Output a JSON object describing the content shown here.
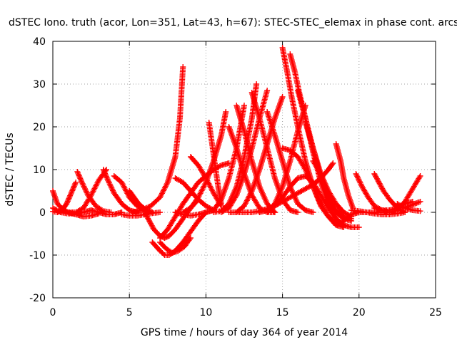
{
  "chart_data": {
    "type": "scatter",
    "title": "dSTEC Iono. truth (acor, Lon=351, Lat=43, h=67): STEC-STEC_elemax in phase cont. arcs",
    "xlabel": "GPS time / hours of day 364 of year 2014",
    "ylabel": "dSTEC  / TECUs",
    "xlim": [
      0,
      25
    ],
    "ylim": [
      -20,
      40
    ],
    "xticks": [
      0,
      5,
      10,
      15,
      20,
      25
    ],
    "yticks": [
      -20,
      -10,
      0,
      10,
      20,
      30,
      40
    ],
    "grid": true,
    "marker": "+",
    "series_color": "#ff0000",
    "series": [
      {
        "x": [
          0.0,
          0.3,
          0.7,
          1.0,
          1.3
        ],
        "y": [
          5,
          2,
          0.5,
          0,
          0
        ]
      },
      {
        "x": [
          0.0,
          0.3,
          0.6,
          0.9,
          1.2,
          1.5
        ],
        "y": [
          0.2,
          0,
          0.5,
          2,
          4.5,
          7
        ]
      },
      {
        "x": [
          0.0,
          0.5,
          1.0,
          1.5,
          2.0,
          2.5
        ],
        "y": [
          1,
          0,
          -0.3,
          -0.3,
          0,
          0.5
        ]
      },
      {
        "x": [
          0.5,
          1.0,
          1.5,
          2.0,
          2.5,
          3.0,
          3.5
        ],
        "y": [
          0,
          0,
          0,
          1,
          4,
          7.5,
          10
        ]
      },
      {
        "x": [
          1.6,
          1.9,
          2.3,
          2.8,
          3.3,
          3.8
        ],
        "y": [
          9.5,
          7,
          4,
          1.5,
          0.3,
          0
        ]
      },
      {
        "x": [
          1.0,
          1.5,
          2.0,
          2.5,
          3.0
        ],
        "y": [
          0,
          -0.5,
          -1,
          -0.8,
          -0.3
        ]
      },
      {
        "x": [
          3.3,
          3.6,
          4.0,
          4.5,
          5.0,
          5.5
        ],
        "y": [
          10,
          7.5,
          4.5,
          2,
          0.5,
          0
        ]
      },
      {
        "x": [
          2.5,
          3.0,
          3.5,
          4.0,
          4.5
        ],
        "y": [
          0.5,
          0,
          -0.5,
          -0.5,
          0
        ]
      },
      {
        "x": [
          4.0,
          4.5,
          5.0,
          5.5,
          6.0,
          6.5
        ],
        "y": [
          8.5,
          7,
          3.5,
          1.5,
          0.5,
          0
        ]
      },
      {
        "x": [
          5.0,
          5.3,
          5.6,
          6.0,
          6.5
        ],
        "y": [
          5,
          3.5,
          2,
          0.8,
          0
        ]
      },
      {
        "x": [
          4.5,
          5.0,
          5.5,
          6.0,
          6.5,
          7.0
        ],
        "y": [
          -0.5,
          -0.8,
          -0.8,
          -0.5,
          -0.2,
          0
        ]
      },
      {
        "x": [
          5.2,
          5.8,
          6.4,
          7.0,
          7.5,
          8.0,
          8.3,
          8.5
        ],
        "y": [
          0,
          0.5,
          1.5,
          3.5,
          7,
          13,
          22,
          34
        ]
      },
      {
        "x": [
          6.0,
          6.3,
          6.6,
          7.0,
          7.3,
          7.6,
          8.0,
          8.5,
          9.0,
          9.5
        ],
        "y": [
          0,
          -2,
          -4,
          -5.5,
          -6,
          -5.5,
          -4,
          -1.5,
          1,
          3
        ]
      },
      {
        "x": [
          6.5,
          7.0,
          7.3,
          7.6,
          8.0,
          8.5,
          9.0,
          9.5,
          10.0
        ],
        "y": [
          -7,
          -9,
          -10,
          -10,
          -9,
          -7,
          -4.5,
          -2,
          0
        ]
      },
      {
        "x": [
          7.0,
          7.4,
          7.8,
          8.2,
          8.6,
          9.0
        ],
        "y": [
          -7,
          -8.5,
          -9.5,
          -9,
          -8,
          -6
        ]
      },
      {
        "x": [
          7.0,
          7.5,
          8.0,
          8.5,
          9.0,
          9.5,
          10.0,
          10.5,
          11.0,
          11.5
        ],
        "y": [
          -6,
          -4,
          -1,
          2,
          4.5,
          7,
          8.5,
          10,
          11,
          11.5
        ]
      },
      {
        "x": [
          8.0,
          8.5,
          9.0,
          9.5,
          10.0,
          10.5
        ],
        "y": [
          8,
          7,
          5,
          3,
          1.5,
          0.5
        ]
      },
      {
        "x": [
          9.0,
          9.5,
          10.0,
          10.5,
          11.0
        ],
        "y": [
          13,
          11,
          8,
          4.5,
          1.5
        ]
      },
      {
        "x": [
          8.0,
          8.5,
          9.0,
          9.5,
          10.0,
          10.5
        ],
        "y": [
          0,
          -0.5,
          -0.8,
          -0.5,
          0,
          0.5
        ]
      },
      {
        "x": [
          8.5,
          9.0,
          9.5,
          10.0,
          10.5,
          11.0,
          11.3
        ],
        "y": [
          0,
          1,
          3.5,
          7,
          12,
          18,
          23.5
        ]
      },
      {
        "x": [
          10.2,
          10.4,
          10.6,
          10.8,
          11.0
        ],
        "y": [
          21,
          16,
          11,
          6,
          2
        ]
      },
      {
        "x": [
          10.0,
          10.5,
          11.0,
          11.5,
          12.0,
          12.5
        ],
        "y": [
          0,
          0.5,
          3,
          8,
          15,
          25
        ]
      },
      {
        "x": [
          10.5,
          11.0,
          11.5,
          12.0,
          12.5,
          13.0,
          13.3
        ],
        "y": [
          0,
          0.3,
          2,
          6,
          13,
          22,
          30
        ]
      },
      {
        "x": [
          11.0,
          11.5,
          12.0,
          12.5,
          13.0,
          13.5,
          14.0
        ],
        "y": [
          0,
          1,
          4,
          9,
          15,
          22,
          28.5
        ]
      },
      {
        "x": [
          11.5,
          12.0,
          12.5,
          13.0,
          13.5,
          14.0,
          14.5,
          15.0
        ],
        "y": [
          0,
          0,
          1.5,
          5,
          10,
          16,
          22,
          27
        ]
      },
      {
        "x": [
          11.5,
          12.0,
          12.5,
          13.0,
          13.5,
          14.0,
          14.5
        ],
        "y": [
          20,
          15,
          9,
          4,
          1,
          0,
          0
        ]
      },
      {
        "x": [
          12.0,
          12.5,
          13.0,
          13.5,
          14.0,
          14.5
        ],
        "y": [
          25,
          19,
          12,
          6,
          2,
          0
        ]
      },
      {
        "x": [
          12.0,
          12.5,
          13.0,
          13.5,
          14.0,
          14.5,
          15.0,
          15.5,
          16.0,
          16.5,
          17.0,
          17.5,
          18.0,
          18.3
        ],
        "y": [
          0,
          0,
          0,
          0.3,
          0.8,
          1.5,
          2.5,
          3.5,
          4.5,
          5.5,
          6.5,
          8,
          10,
          11.5
        ]
      },
      {
        "x": [
          13.0,
          13.5,
          14.0,
          14.5,
          15.0,
          15.5,
          16.0
        ],
        "y": [
          28,
          22,
          15,
          8,
          3,
          0.5,
          0
        ]
      },
      {
        "x": [
          13.5,
          14.0,
          14.5,
          15.0,
          15.5,
          16.0,
          16.5,
          17.0,
          17.5,
          18.0,
          18.5
        ],
        "y": [
          0,
          0.5,
          1.5,
          3.5,
          6,
          8,
          8.5,
          7,
          4,
          1,
          -1.5
        ]
      },
      {
        "x": [
          14.0,
          14.5,
          15.0,
          15.5,
          16.0,
          16.5,
          17.0
        ],
        "y": [
          23.5,
          18,
          12,
          6,
          2,
          0.5,
          0
        ]
      },
      {
        "x": [
          14.0,
          14.5,
          15.0,
          15.5,
          16.0,
          16.5
        ],
        "y": [
          0,
          2,
          6,
          12,
          19,
          25
        ]
      },
      {
        "x": [
          15.0,
          15.3,
          15.6,
          16.0,
          16.5,
          17.0,
          17.5,
          18.0,
          18.5,
          19.0
        ],
        "y": [
          38.5,
          33,
          27,
          20,
          12,
          6,
          1.5,
          -1,
          -2.5,
          -3
        ]
      },
      {
        "x": [
          15.5,
          15.8,
          16.1,
          16.5,
          17.0,
          17.5,
          18.0,
          18.5,
          19.0,
          19.5,
          20.0
        ],
        "y": [
          37,
          33,
          28,
          22,
          14,
          7,
          2,
          -1.5,
          -3,
          -3.5,
          -3.5
        ]
      },
      {
        "x": [
          15.0,
          15.5,
          16.0,
          16.5,
          17.0,
          17.5,
          18.0,
          18.5,
          19.0
        ],
        "y": [
          15,
          14.5,
          13,
          10,
          6,
          2,
          -1,
          -3,
          -3.5
        ]
      },
      {
        "x": [
          16.0,
          16.5,
          17.0,
          17.5,
          18.0,
          18.5,
          19.0,
          19.5
        ],
        "y": [
          28.5,
          22,
          15,
          8,
          3,
          0,
          -1.5,
          -2
        ]
      },
      {
        "x": [
          16.5,
          17.0,
          17.5,
          18.0,
          18.5,
          19.0,
          19.5
        ],
        "y": [
          21,
          15,
          9,
          4,
          0.5,
          -1,
          -1.5
        ]
      },
      {
        "x": [
          18.5,
          18.8,
          19.0,
          19.3,
          19.6
        ],
        "y": [
          16,
          12,
          8,
          4,
          1
        ]
      },
      {
        "x": [
          17.0,
          17.5,
          18.0,
          18.5,
          19.0,
          19.5
        ],
        "y": [
          12,
          9,
          5,
          2,
          0,
          -1
        ]
      },
      {
        "x": [
          18.5,
          19.0,
          19.5,
          20.0,
          20.5,
          21.0,
          21.5
        ],
        "y": [
          -3,
          -2,
          -0.5,
          0,
          0,
          0,
          0
        ]
      },
      {
        "x": [
          19.8,
          20.2,
          20.6,
          21.0,
          21.5,
          22.0
        ],
        "y": [
          9,
          6,
          3.5,
          1.5,
          0.5,
          0
        ]
      },
      {
        "x": [
          19.5,
          20.0,
          20.5,
          21.0,
          21.5,
          22.0,
          22.5,
          23.0
        ],
        "y": [
          0.5,
          0.3,
          0,
          -0.3,
          -0.5,
          -0.5,
          -0.3,
          0
        ]
      },
      {
        "x": [
          21.0,
          21.5,
          22.0,
          22.5,
          23.0,
          23.5
        ],
        "y": [
          1,
          0.5,
          0.5,
          1,
          2,
          2.5
        ]
      },
      {
        "x": [
          21.0,
          21.3,
          21.6,
          22.0,
          22.5,
          23.0
        ],
        "y": [
          9,
          7,
          5,
          3,
          1,
          0
        ]
      },
      {
        "x": [
          22.0,
          22.5,
          23.0,
          23.5,
          24.0
        ],
        "y": [
          0,
          0.5,
          2.5,
          5.5,
          8.5
        ]
      },
      {
        "x": [
          22.5,
          23.0,
          23.5,
          24.0
        ],
        "y": [
          2,
          1,
          0.5,
          0.3
        ]
      },
      {
        "x": [
          23.0,
          23.5,
          24.0
        ],
        "y": [
          1,
          1.8,
          2.5
        ]
      }
    ]
  }
}
